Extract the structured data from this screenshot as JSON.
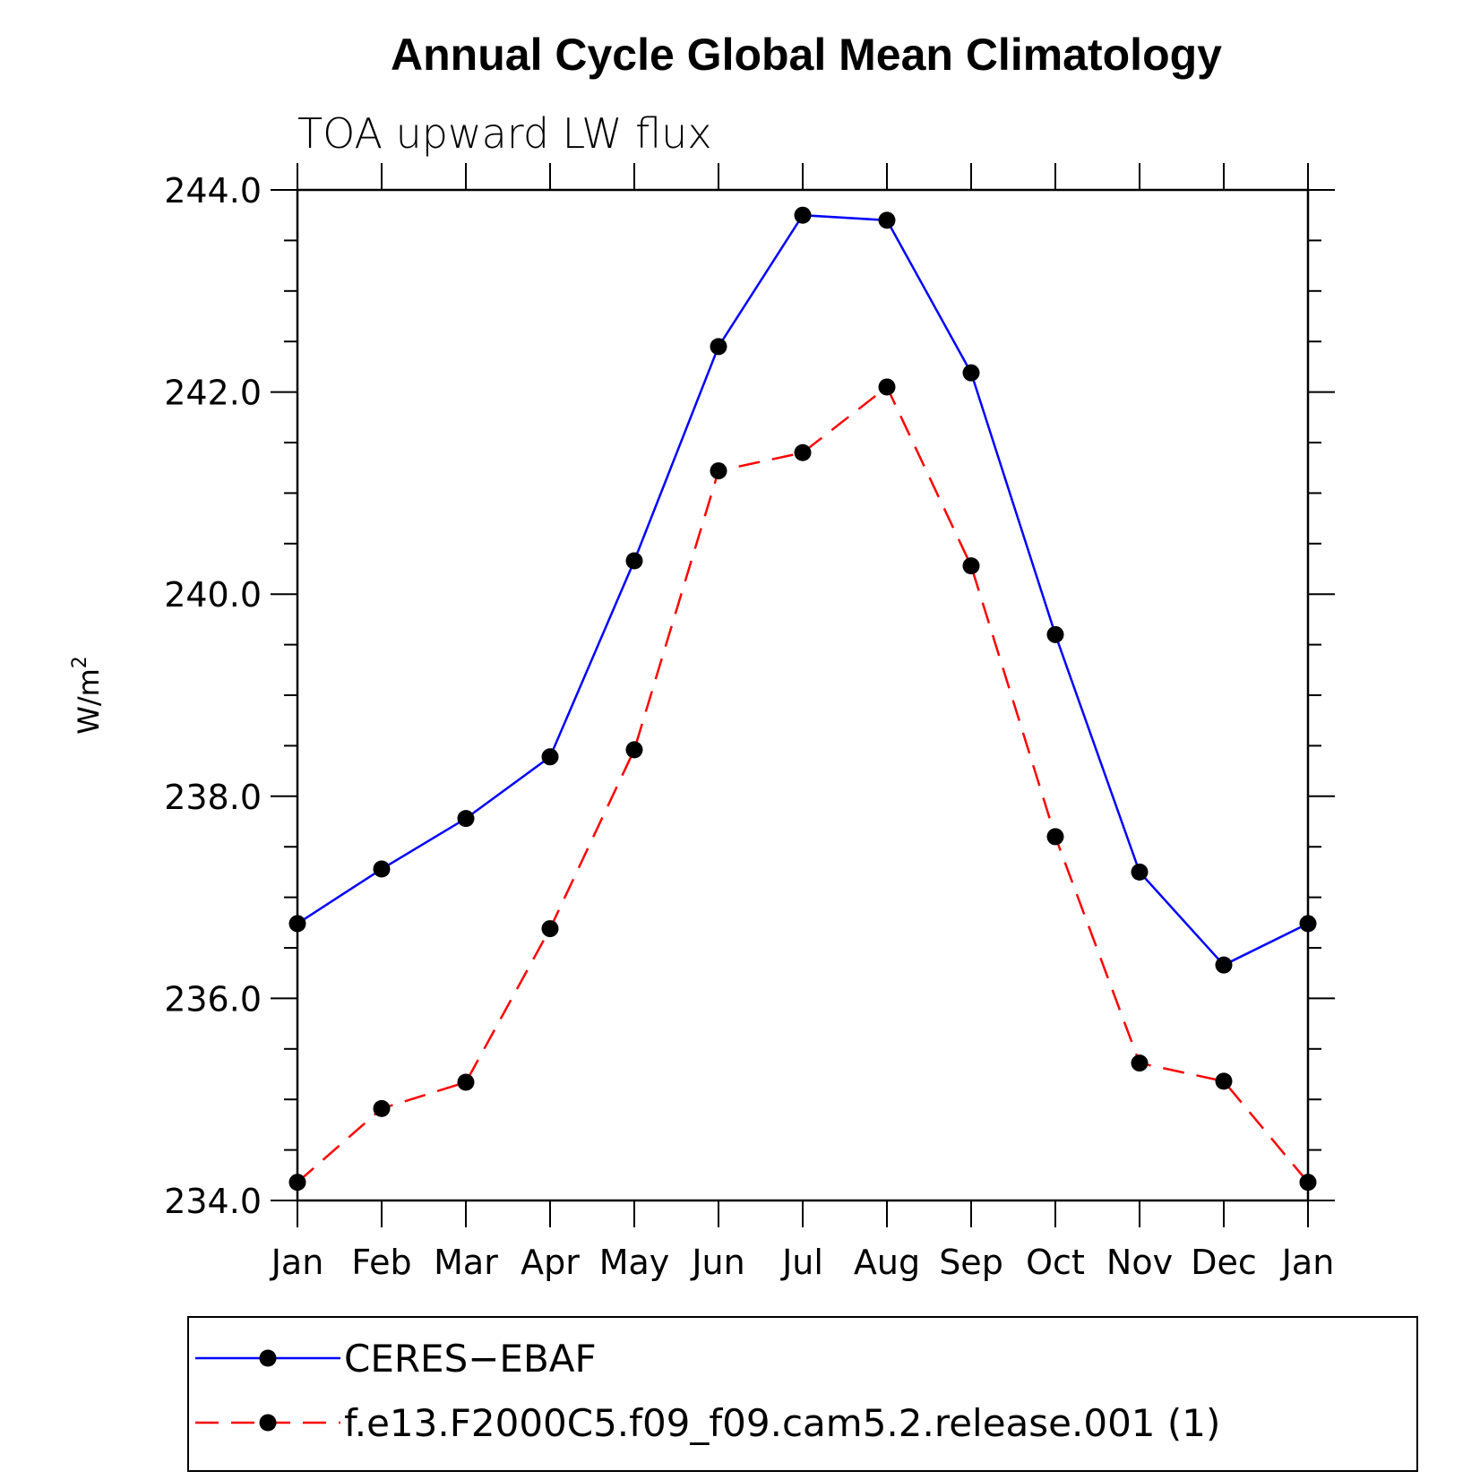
{
  "chart_data": {
    "type": "line",
    "title": "Annual Cycle Global Mean Climatology",
    "subtitle": "TOA upward LW flux",
    "ylabel": "W/m",
    "ylabel_sup": "2",
    "ylim": [
      234.0,
      244.0
    ],
    "yticks": [
      "234.0",
      "236.0",
      "238.0",
      "240.0",
      "242.0",
      "244.0"
    ],
    "categories": [
      "Jan",
      "Feb",
      "Mar",
      "Apr",
      "May",
      "Jun",
      "Jul",
      "Aug",
      "Sep",
      "Oct",
      "Nov",
      "Dec",
      "Jan"
    ],
    "grid": false,
    "legend_position": "bottom",
    "series": [
      {
        "name": "CERES−EBAF",
        "color": "#0000ff",
        "dash": "solid",
        "values": [
          236.74,
          237.28,
          237.78,
          238.39,
          240.33,
          242.45,
          243.75,
          243.7,
          242.19,
          239.6,
          237.25,
          236.33,
          236.74
        ]
      },
      {
        "name": "f.e13.F2000C5.f09_f09.cam5.2.release.001 (1)",
        "color": "#ff0000",
        "dash": "dashed",
        "values": [
          234.18,
          234.91,
          235.17,
          236.69,
          238.46,
          241.22,
          241.4,
          242.05,
          240.28,
          237.6,
          235.36,
          235.18,
          234.18
        ]
      }
    ]
  }
}
